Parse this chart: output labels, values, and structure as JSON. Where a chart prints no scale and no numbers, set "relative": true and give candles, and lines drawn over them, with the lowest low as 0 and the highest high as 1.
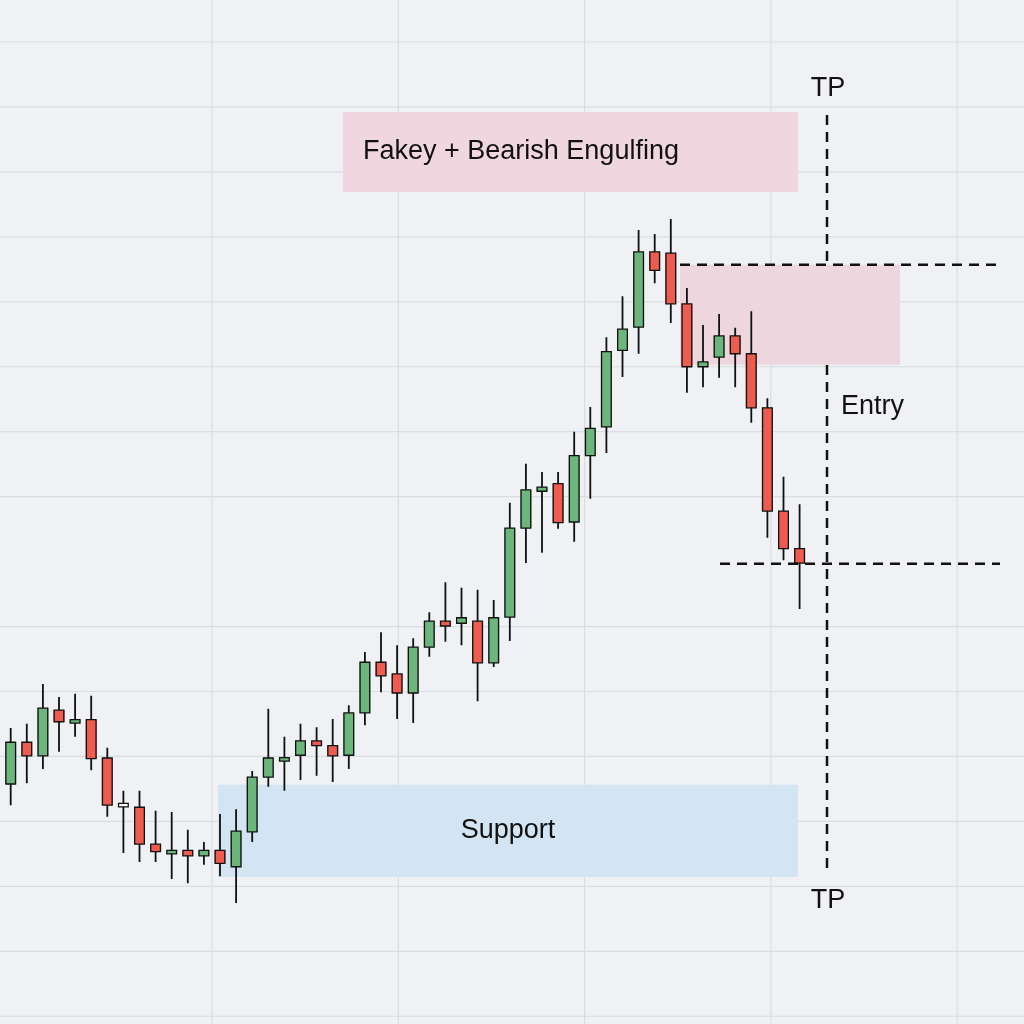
{
  "chart_data": {
    "type": "candlestick",
    "relative": true,
    "tick_labels": false,
    "grid": true,
    "categories": [
      null,
      null,
      null,
      null,
      null,
      null,
      null,
      null,
      null,
      null,
      null,
      null,
      null,
      null,
      null,
      null,
      null,
      null,
      null,
      null,
      null,
      null,
      null,
      null,
      null,
      null,
      null,
      null,
      null,
      null,
      null,
      null,
      null,
      null,
      null,
      null,
      null,
      null,
      null,
      null,
      null,
      null,
      null,
      null,
      null,
      null,
      null,
      null,
      null,
      null
    ],
    "ohlc": [
      [
        0.174,
        0.256,
        0.143,
        0.235
      ],
      [
        0.235,
        0.262,
        0.175,
        0.215
      ],
      [
        0.215,
        0.32,
        0.196,
        0.285
      ],
      [
        0.282,
        0.301,
        0.221,
        0.265
      ],
      [
        0.263,
        0.306,
        0.243,
        0.268
      ],
      [
        0.268,
        0.303,
        0.194,
        0.211
      ],
      [
        0.212,
        0.227,
        0.126,
        0.143
      ],
      [
        0.143,
        0.164,
        0.073,
        0.143
      ],
      [
        0.14,
        0.164,
        0.06,
        0.086
      ],
      [
        0.086,
        0.135,
        0.06,
        0.075
      ],
      [
        0.072,
        0.133,
        0.035,
        0.077
      ],
      [
        0.077,
        0.107,
        0.029,
        0.069
      ],
      [
        0.069,
        0.089,
        0.056,
        0.077
      ],
      [
        0.077,
        0.13,
        0.039,
        0.058
      ],
      [
        0.053,
        0.137,
        0,
        0.105
      ],
      [
        0.104,
        0.193,
        0.089,
        0.184
      ],
      [
        0.184,
        0.284,
        0.17,
        0.212
      ],
      [
        0.208,
        0.243,
        0.164,
        0.212
      ],
      [
        0.216,
        0.262,
        0.18,
        0.237
      ],
      [
        0.237,
        0.257,
        0.186,
        0.23
      ],
      [
        0.23,
        0.269,
        0.177,
        0.215
      ],
      [
        0.216,
        0.289,
        0.196,
        0.278
      ],
      [
        0.278,
        0.367,
        0.26,
        0.352
      ],
      [
        0.352,
        0.396,
        0.308,
        0.332
      ],
      [
        0.335,
        0.377,
        0.269,
        0.307
      ],
      [
        0.307,
        0.387,
        0.263,
        0.374
      ],
      [
        0.374,
        0.425,
        0.36,
        0.412
      ],
      [
        0.412,
        0.469,
        0.382,
        0.405
      ],
      [
        0.409,
        0.461,
        0.377,
        0.417
      ],
      [
        0.412,
        0.458,
        0.295,
        0.351
      ],
      [
        0.351,
        0.443,
        0.345,
        0.417
      ],
      [
        0.418,
        0.585,
        0.383,
        0.548
      ],
      [
        0.548,
        0.642,
        0.497,
        0.604
      ],
      [
        0.602,
        0.63,
        0.512,
        0.608
      ],
      [
        0.613,
        0.63,
        0.547,
        0.556
      ],
      [
        0.557,
        0.689,
        0.528,
        0.654
      ],
      [
        0.654,
        0.725,
        0.591,
        0.694
      ],
      [
        0.696,
        0.827,
        0.658,
        0.806
      ],
      [
        0.808,
        0.887,
        0.769,
        0.839
      ],
      [
        0.842,
        0.984,
        0.803,
        0.952
      ],
      [
        0.952,
        0.978,
        0.906,
        0.925
      ],
      [
        0.95,
        1,
        0.848,
        0.876
      ],
      [
        0.876,
        0.899,
        0.746,
        0.784
      ],
      [
        0.784,
        0.845,
        0.754,
        0.791
      ],
      [
        0.798,
        0.861,
        0.768,
        0.829
      ],
      [
        0.829,
        0.841,
        0.754,
        0.803
      ],
      [
        0.803,
        0.865,
        0.702,
        0.724
      ],
      [
        0.724,
        0.738,
        0.534,
        0.573
      ],
      [
        0.573,
        0.623,
        0.501,
        0.518
      ],
      [
        0.518,
        0.583,
        0.43,
        0.497
      ]
    ],
    "colors": [
      "#6db57c",
      "#ea5d50",
      "#6db57c",
      "#ea5d50",
      "#6db57c",
      "#ea5d50",
      "#ea5d50",
      "#ffffff",
      "#ea5d50",
      "#ea5d50",
      "#6db57c",
      "#ea5d50",
      "#6db57c",
      "#ea5d50",
      "#6db57c",
      "#6db57c",
      "#6db57c",
      "#6db57c",
      "#6db57c",
      "#ea5d50",
      "#ea5d50",
      "#6db57c",
      "#6db57c",
      "#ea5d50",
      "#ea5d50",
      "#6db57c",
      "#6db57c",
      "#ea5d50",
      "#6db57c",
      "#ea5d50",
      "#6db57c",
      "#6db57c",
      "#6db57c",
      "#6db57c",
      "#ea5d50",
      "#6db57c",
      "#6db57c",
      "#6db57c",
      "#6db57c",
      "#6db57c",
      "#ea5d50",
      "#ea5d50",
      "#ea5d50",
      "#6db57c",
      "#6db57c",
      "#ea5d50",
      "#ea5d50",
      "#ea5d50",
      "#ea5d50",
      "#ea5d50"
    ],
    "bands": [
      {
        "axis": "y",
        "from": 0.038,
        "to": 0.173,
        "label": "Support",
        "color": "#d3e4f3"
      },
      {
        "axis": "y",
        "from": 0.787,
        "to": 0.933,
        "color": "#eed6de"
      }
    ],
    "ref_lines": [
      {
        "axis": "y",
        "value": 0.933,
        "color": "#111111",
        "line_style": "dashed"
      },
      {
        "axis": "y",
        "value": 0.496,
        "color": "#111111",
        "line_style": "dashed"
      }
    ],
    "annotations": [
      "Fakey + Bearish Engulfing",
      "Entry",
      "TP",
      "TP"
    ]
  }
}
